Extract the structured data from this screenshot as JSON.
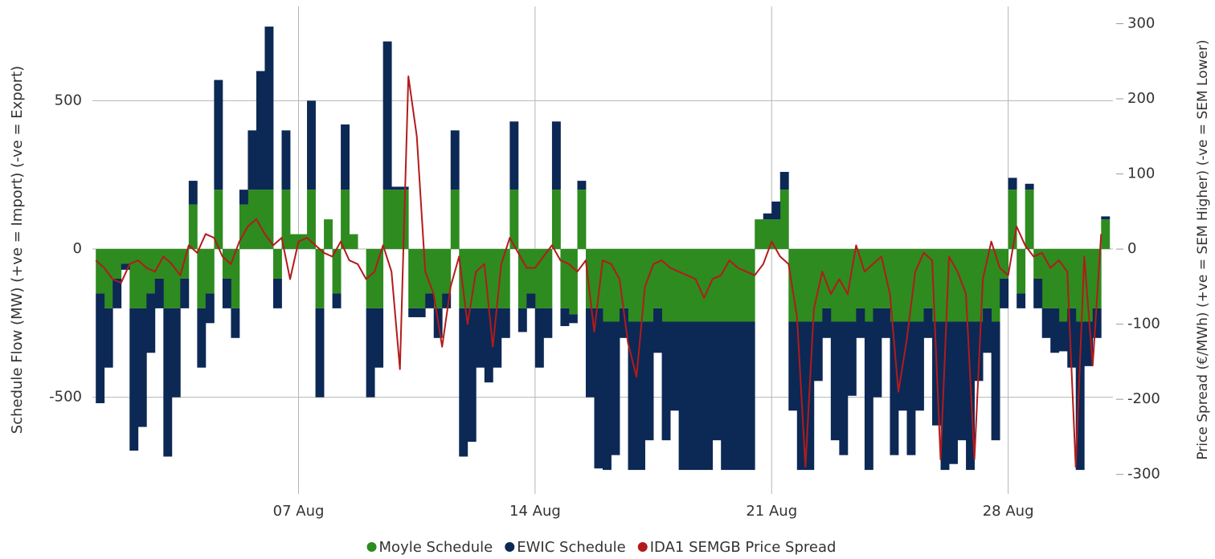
{
  "chart_data": {
    "type": "stacked-bar-line",
    "y_label": "Schedule Flow (MW) (+ve = Import) (-ve = Export)",
    "y2_label": "Price Spread (€/MWh) (+ve = SEM Higher) (-ve = SEM Lower)",
    "xlim": [
      0.9,
      31.1
    ],
    "xticks": [
      {
        "value": 7,
        "label": "07 Aug"
      },
      {
        "value": 14,
        "label": "14 Aug"
      },
      {
        "value": 21,
        "label": "21 Aug"
      },
      {
        "value": 28,
        "label": "28 Aug"
      }
    ],
    "ylim": [
      -826,
      818
    ],
    "yticks": [
      -500,
      0,
      500
    ],
    "y2lim": [
      -326,
      323
    ],
    "y2ticks": [
      -300,
      -200,
      -100,
      0,
      100,
      200,
      300
    ],
    "grid": true,
    "legend": "bottom",
    "x": [
      1,
      1.25,
      1.5,
      1.75,
      2,
      2.25,
      2.5,
      2.75,
      3,
      3.25,
      3.5,
      3.75,
      4,
      4.25,
      4.5,
      4.75,
      5,
      5.25,
      5.5,
      5.75,
      6,
      6.25,
      6.5,
      6.75,
      7,
      7.25,
      7.5,
      7.75,
      8,
      8.25,
      8.5,
      8.75,
      9,
      9.25,
      9.5,
      9.75,
      10,
      10.25,
      10.5,
      10.75,
      11,
      11.25,
      11.5,
      11.75,
      12,
      12.25,
      12.5,
      12.75,
      13,
      13.25,
      13.5,
      13.75,
      14,
      14.25,
      14.5,
      14.75,
      15,
      15.25,
      15.5,
      15.75,
      16,
      16.25,
      16.5,
      16.75,
      17,
      17.25,
      17.5,
      17.75,
      18,
      18.25,
      18.5,
      18.75,
      19,
      19.25,
      19.5,
      19.75,
      20,
      20.25,
      20.5,
      20.75,
      21,
      21.25,
      21.5,
      21.75,
      22,
      22.25,
      22.5,
      22.75,
      23,
      23.25,
      23.5,
      23.75,
      24,
      24.25,
      24.5,
      24.75,
      25,
      25.25,
      25.5,
      25.75,
      26,
      26.25,
      26.5,
      26.75,
      27,
      27.25,
      27.5,
      27.75,
      28,
      28.25,
      28.5,
      28.75,
      29,
      29.25,
      29.5,
      29.75,
      30,
      30.25,
      30.5,
      30.75
    ],
    "series": [
      {
        "name": "Moyle Schedule",
        "color": "#2e8b1f",
        "kind": "bar",
        "values": [
          -150,
          -200,
          -100,
          -50,
          -200,
          -200,
          -150,
          -100,
          -200,
          -200,
          -100,
          150,
          -200,
          -150,
          200,
          -100,
          -200,
          150,
          200,
          200,
          200,
          -100,
          200,
          50,
          50,
          200,
          -200,
          100,
          -150,
          200,
          50,
          0,
          -200,
          -200,
          200,
          200,
          200,
          -200,
          -200,
          -150,
          -200,
          -150,
          200,
          -200,
          -200,
          -200,
          -200,
          -200,
          -200,
          200,
          -200,
          -150,
          -200,
          -200,
          200,
          -200,
          -220,
          200,
          -200,
          -200,
          -245,
          -245,
          -200,
          -245,
          -245,
          -245,
          -200,
          -245,
          -245,
          -245,
          -245,
          -245,
          -245,
          -245,
          -245,
          -245,
          -245,
          -245,
          100,
          100,
          100,
          200,
          -245,
          -245,
          -245,
          -245,
          -200,
          -245,
          -245,
          -245,
          -200,
          -245,
          -200,
          -200,
          -245,
          -245,
          -245,
          -245,
          -200,
          -245,
          -245,
          -245,
          -245,
          -245,
          -245,
          -200,
          -245,
          -100,
          200,
          -150,
          200,
          -100,
          -200,
          -200,
          -245,
          -200,
          -245,
          -245,
          -200,
          100
        ]
      },
      {
        "name": "EWIC Schedule",
        "color": "#0c2855",
        "kind": "bar",
        "values": [
          -370,
          -200,
          -100,
          -20,
          -480,
          -400,
          -200,
          -100,
          -500,
          -300,
          -100,
          80,
          -200,
          -100,
          370,
          -100,
          -100,
          50,
          200,
          400,
          550,
          -100,
          200,
          0,
          0,
          300,
          -300,
          0,
          -50,
          220,
          0,
          0,
          -300,
          -200,
          500,
          10,
          10,
          -30,
          -30,
          -50,
          -100,
          -50,
          200,
          -500,
          -450,
          -200,
          -250,
          -200,
          -100,
          230,
          -80,
          -50,
          -200,
          -100,
          230,
          -60,
          -30,
          30,
          -300,
          -540,
          -500,
          -450,
          -100,
          -500,
          -500,
          -400,
          -150,
          -400,
          -300,
          -500,
          -500,
          -500,
          -500,
          -400,
          -500,
          -500,
          -500,
          -500,
          0,
          20,
          60,
          60,
          -300,
          -500,
          -500,
          -200,
          -100,
          -400,
          -450,
          -250,
          -100,
          -500,
          -300,
          -100,
          -450,
          -300,
          -450,
          -300,
          -100,
          -350,
          -500,
          -480,
          -400,
          -500,
          -200,
          -150,
          -400,
          -100,
          40,
          -50,
          20,
          -100,
          -100,
          -150,
          -100,
          -200,
          -500,
          -150,
          -100,
          10
        ]
      },
      {
        "name": "IDA1 SEMGB Price Spread",
        "color": "#b31b1b",
        "kind": "line",
        "axis": "y2",
        "values": [
          -15,
          -25,
          -40,
          -45,
          -20,
          -15,
          -25,
          -30,
          -10,
          -20,
          -35,
          5,
          -5,
          20,
          15,
          -10,
          -20,
          10,
          30,
          40,
          20,
          5,
          15,
          -40,
          10,
          15,
          5,
          -5,
          -10,
          10,
          -15,
          -20,
          -40,
          -30,
          5,
          -30,
          -160,
          230,
          150,
          -30,
          -60,
          -130,
          -50,
          -10,
          -100,
          -30,
          -20,
          -130,
          -20,
          15,
          -5,
          -25,
          -25,
          -10,
          5,
          -15,
          -20,
          -30,
          -15,
          -110,
          -15,
          -20,
          -40,
          -125,
          -170,
          -50,
          -20,
          -15,
          -25,
          -30,
          -35,
          -40,
          -65,
          -40,
          -35,
          -15,
          -25,
          -30,
          -35,
          -20,
          10,
          -10,
          -20,
          -90,
          -290,
          -80,
          -30,
          -60,
          -40,
          -60,
          5,
          -30,
          -20,
          -10,
          -60,
          -190,
          -120,
          -30,
          -5,
          -15,
          -280,
          -10,
          -30,
          -60,
          -280,
          -40,
          10,
          -25,
          -35,
          30,
          5,
          -10,
          -5,
          -25,
          -15,
          -30,
          -290,
          -10,
          -155,
          20
        ]
      }
    ]
  }
}
